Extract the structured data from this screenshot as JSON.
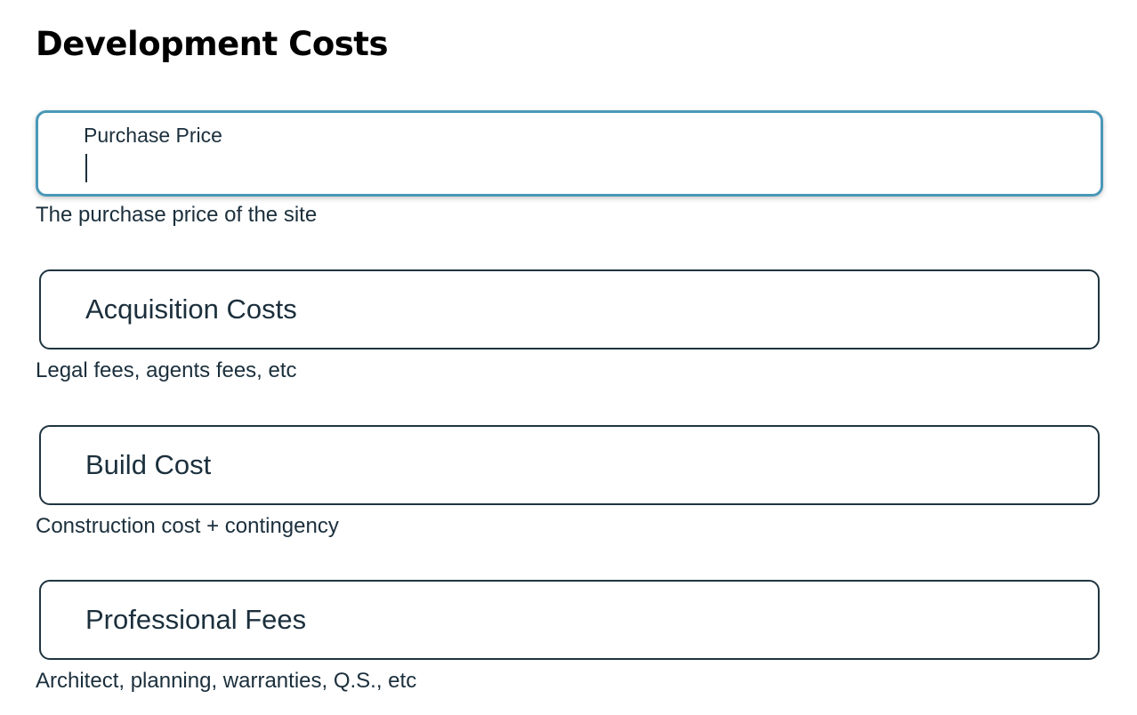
{
  "page": {
    "title": "Development Costs"
  },
  "fields": [
    {
      "label": "Purchase Price",
      "value": "",
      "helper": "The purchase price of the site",
      "focused": true
    },
    {
      "label": "Acquisition Costs",
      "value": "",
      "helper": "Legal fees, agents fees, etc",
      "focused": false
    },
    {
      "label": "Build Cost",
      "value": "",
      "helper": "Construction cost + contingency",
      "focused": false
    },
    {
      "label": "Professional Fees",
      "value": "",
      "helper": "Architect, planning, warranties, Q.S., etc",
      "focused": false
    }
  ],
  "colors": {
    "focus_border": "#4a98b8",
    "field_border": "#1f3440",
    "text": "#1b2f3c",
    "title": "#000000"
  }
}
